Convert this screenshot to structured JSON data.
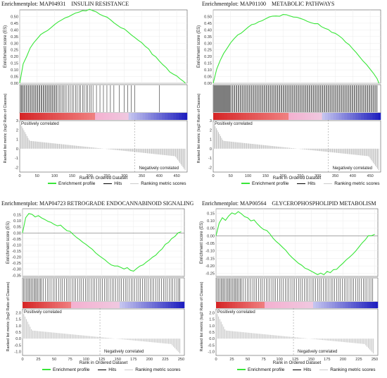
{
  "colors": {
    "profile": "#39e639",
    "hits": "#000000",
    "metric": "#bfbfbf",
    "zero_line": "#888888",
    "heat_high": "#d62728",
    "heat_mid": "#f0c8e0",
    "heat_low": "#1f1fbf"
  },
  "chart_data": [
    {
      "type": "line",
      "title_prefix": "Enrichmentplot:",
      "title_id": "MAP04931",
      "title_name": "INSULIN RESISTANCE",
      "ylabel_top": "Enrichment score (ES)",
      "ylabel_bottom": "Ranked list metric (log2 Ratio of Classes)",
      "xlabel": "Rank in Ordered Dataset",
      "es_yticks": [
        "0.50",
        "0.45",
        "0.40",
        "0.35",
        "0.30",
        "0.25",
        "0.20",
        "0.15",
        "0.10",
        "0.05",
        "0.00"
      ],
      "es_ylim": [
        0.0,
        0.55
      ],
      "es_x": [
        0,
        10,
        20,
        30,
        40,
        50,
        60,
        70,
        80,
        90,
        100,
        110,
        120,
        130,
        140,
        150,
        160,
        170,
        180,
        190,
        200,
        210,
        220,
        230,
        240,
        250,
        260,
        270,
        280,
        290,
        300,
        310,
        320,
        330,
        340,
        350,
        360,
        370,
        380,
        390,
        400,
        410,
        420,
        430,
        440,
        450,
        460,
        470,
        475
      ],
      "es_y": [
        0.0,
        0.14,
        0.2,
        0.26,
        0.3,
        0.33,
        0.36,
        0.38,
        0.4,
        0.42,
        0.44,
        0.46,
        0.48,
        0.49,
        0.5,
        0.51,
        0.52,
        0.53,
        0.54,
        0.54,
        0.55,
        0.54,
        0.53,
        0.52,
        0.51,
        0.5,
        0.48,
        0.46,
        0.44,
        0.42,
        0.4,
        0.38,
        0.36,
        0.34,
        0.32,
        0.3,
        0.27,
        0.25,
        0.22,
        0.2,
        0.17,
        0.14,
        0.12,
        0.09,
        0.07,
        0.05,
        0.03,
        0.01,
        0.0
      ],
      "hits": [
        3,
        5,
        8,
        10,
        13,
        16,
        19,
        22,
        25,
        28,
        31,
        34,
        37,
        40,
        43,
        46,
        49,
        52,
        55,
        58,
        61,
        64,
        67,
        70,
        73,
        76,
        79,
        82,
        85,
        88,
        91,
        94,
        97,
        100,
        103,
        106,
        110,
        114,
        118,
        122,
        126,
        130,
        135,
        140,
        145,
        150,
        155,
        160,
        165,
        170,
        175,
        180,
        185,
        190,
        195,
        200,
        205,
        210,
        220,
        230,
        240,
        250,
        260,
        270,
        285,
        300,
        310,
        320,
        330,
        400
      ],
      "metric_yticks": [
        "3",
        "2",
        "1",
        "0",
        "-1",
        "-2"
      ],
      "metric_ylim": [
        -2.5,
        3.0
      ],
      "metric_shape": {
        "start": 2.8,
        "end": -2.3,
        "n": 475
      },
      "xticks": [
        "0",
        "50",
        "100",
        "150",
        "200",
        "250",
        "300",
        "350",
        "400",
        "450"
      ],
      "xlim": [
        0,
        480
      ],
      "xtick_values": [
        0,
        50,
        100,
        150,
        200,
        250,
        300,
        350,
        400,
        450
      ],
      "zero_cross": 330,
      "pos_label": "Positively correlated",
      "neg_label": "Negatively correlated",
      "heat_stops": [
        0.0,
        0.45,
        0.65,
        1.0
      ]
    },
    {
      "type": "line",
      "title_prefix": "Enrichmentplot:",
      "title_id": "MAP01100",
      "title_name": "METABOLIC PATHWAYS",
      "ylabel_top": "Enrichment score (ES)",
      "ylabel_bottom": "Ranked list metric (log2 Ratio of Classes)",
      "xlabel": "Rank in Ordered Dataset",
      "es_yticks": [
        "0.50",
        "0.45",
        "0.40",
        "0.35",
        "0.30",
        "0.25",
        "0.20",
        "0.15",
        "0.10",
        "0.05",
        "0.00"
      ],
      "es_ylim": [
        0.0,
        0.55
      ],
      "es_x": [
        0,
        10,
        20,
        30,
        40,
        50,
        60,
        70,
        80,
        90,
        100,
        110,
        120,
        130,
        140,
        150,
        160,
        170,
        180,
        190,
        200,
        210,
        220,
        230,
        240,
        250,
        260,
        270,
        280,
        290,
        300,
        310,
        320,
        330,
        340,
        350,
        360,
        370,
        380,
        390,
        400,
        410,
        420,
        430,
        440,
        450,
        460,
        470,
        475
      ],
      "es_y": [
        0.0,
        0.1,
        0.17,
        0.22,
        0.26,
        0.3,
        0.33,
        0.36,
        0.38,
        0.4,
        0.42,
        0.44,
        0.45,
        0.46,
        0.47,
        0.48,
        0.49,
        0.5,
        0.5,
        0.5,
        0.51,
        0.51,
        0.5,
        0.5,
        0.5,
        0.49,
        0.48,
        0.47,
        0.46,
        0.45,
        0.44,
        0.42,
        0.41,
        0.4,
        0.38,
        0.37,
        0.35,
        0.33,
        0.31,
        0.29,
        0.26,
        0.23,
        0.2,
        0.17,
        0.14,
        0.1,
        0.07,
        0.03,
        0.0
      ],
      "hits": [
        2,
        4,
        6,
        8,
        10,
        12,
        14,
        16,
        18,
        20,
        22,
        24,
        26,
        28,
        30,
        32,
        34,
        36,
        38,
        40,
        42,
        44,
        46,
        48,
        50,
        53,
        56,
        59,
        62,
        65,
        68,
        71,
        74,
        77,
        80,
        83,
        86,
        89,
        92,
        95,
        98,
        101,
        104,
        107,
        110,
        113,
        116,
        119,
        122,
        125,
        128,
        131,
        134,
        137,
        140,
        143,
        146,
        149,
        152,
        155,
        158,
        161,
        164,
        167,
        170,
        173,
        176,
        179,
        182,
        185,
        188,
        191,
        194,
        197,
        200,
        203,
        206,
        209,
        212,
        215,
        218,
        221,
        224,
        227,
        230,
        233,
        236,
        239,
        242,
        245,
        248,
        251,
        254,
        257,
        260,
        263,
        266,
        269,
        272,
        275,
        278,
        281,
        284,
        287,
        290,
        293,
        296,
        299,
        302,
        305,
        308,
        311,
        314,
        317,
        320,
        323,
        326,
        329,
        332,
        335,
        338,
        341,
        344,
        347,
        350,
        353,
        356,
        359,
        362,
        365,
        368,
        371,
        374,
        377,
        380,
        383,
        386,
        389,
        392,
        395,
        398,
        401,
        404,
        407,
        410,
        413,
        416,
        419,
        422,
        425,
        428,
        431,
        434,
        437,
        440,
        443,
        446,
        449,
        452,
        455,
        458,
        461,
        464,
        467,
        470
      ],
      "metric_yticks": [
        "3",
        "2",
        "1",
        "0",
        "-1",
        "-2"
      ],
      "metric_ylim": [
        -2.5,
        3.0
      ],
      "metric_shape": {
        "start": 2.8,
        "end": -2.3,
        "n": 475
      },
      "xticks": [
        "0",
        "50",
        "100",
        "150",
        "200",
        "250",
        "300",
        "350",
        "400",
        "450"
      ],
      "xlim": [
        0,
        480
      ],
      "xtick_values": [
        0,
        50,
        100,
        150,
        200,
        250,
        300,
        350,
        400,
        450
      ],
      "zero_cross": 330,
      "pos_label": "Positively correlated",
      "neg_label": "Negatively correlated",
      "heat_stops": [
        0.0,
        0.45,
        0.65,
        1.0
      ]
    },
    {
      "type": "line",
      "title_prefix": "Enrichmentplot:",
      "title_id": "MAP04723",
      "title_name": "RETROGRADE ENDOCANNABINOID SIGNALING",
      "ylabel_top": "Enrichment score (ES)",
      "ylabel_bottom": "Ranked list metric (log2 Ratio of Classes)",
      "xlabel": "Rank in Ordered Dataset",
      "es_yticks": [
        "0.15",
        "0.10",
        "0.05",
        "0.00",
        "-0.05",
        "-0.10",
        "-0.15",
        "-0.20",
        "-0.25",
        "-0.30",
        "-0.35"
      ],
      "es_ylim": [
        -0.36,
        0.2
      ],
      "es_x": [
        0,
        5,
        10,
        15,
        20,
        25,
        30,
        35,
        40,
        45,
        50,
        55,
        60,
        65,
        70,
        75,
        80,
        85,
        90,
        95,
        100,
        105,
        110,
        115,
        120,
        125,
        130,
        135,
        140,
        145,
        150,
        155,
        160,
        165,
        170,
        175,
        180,
        185,
        190,
        195,
        200,
        205,
        210,
        215,
        220,
        225,
        230,
        235,
        240,
        245,
        250
      ],
      "es_y": [
        0.0,
        0.12,
        0.16,
        0.15,
        0.13,
        0.14,
        0.12,
        0.11,
        0.1,
        0.09,
        0.07,
        0.06,
        0.07,
        0.04,
        0.02,
        0.01,
        -0.02,
        -0.04,
        -0.06,
        -0.08,
        -0.1,
        -0.12,
        -0.14,
        -0.16,
        -0.18,
        -0.2,
        -0.22,
        -0.24,
        -0.26,
        -0.27,
        -0.28,
        -0.29,
        -0.3,
        -0.29,
        -0.31,
        -0.32,
        -0.3,
        -0.28,
        -0.26,
        -0.24,
        -0.22,
        -0.2,
        -0.18,
        -0.15,
        -0.13,
        -0.1,
        -0.08,
        -0.05,
        -0.03,
        0.0,
        0.01
      ],
      "hits": [
        2,
        4,
        6,
        8,
        10,
        12,
        14,
        16,
        18,
        20,
        22,
        24,
        26,
        28,
        30,
        33,
        36,
        39,
        42,
        45,
        48,
        51,
        54,
        57,
        60,
        63,
        66,
        69,
        72,
        75,
        78,
        81,
        84,
        87,
        90,
        93,
        96,
        99,
        102,
        105,
        108,
        111,
        114,
        117,
        120,
        123,
        126,
        129,
        132,
        135,
        138,
        141,
        144,
        147,
        150,
        153,
        156,
        159,
        162,
        165,
        168,
        171,
        174,
        177,
        180,
        183,
        186,
        189,
        192,
        195,
        198,
        201,
        204,
        207,
        210,
        213,
        216,
        219,
        222,
        225,
        228,
        231,
        234,
        237,
        240,
        243,
        246,
        248
      ],
      "metric_yticks": [
        "2.0",
        "1.5",
        "1.0",
        "0.5",
        "0.0",
        "-0.5",
        "-1.0"
      ],
      "metric_ylim": [
        -1.3,
        2.3
      ],
      "metric_shape": {
        "start": 2.1,
        "end": -1.2,
        "n": 250
      },
      "xticks": [
        "0",
        "25",
        "50",
        "75",
        "100",
        "125",
        "150",
        "175",
        "200",
        "225",
        "250"
      ],
      "xlim": [
        0,
        255
      ],
      "xtick_values": [
        0,
        25,
        50,
        75,
        100,
        125,
        150,
        175,
        200,
        225,
        250
      ],
      "zero_cross": 122,
      "pos_label": "Positively correlated",
      "neg_label": "Negatively correlated",
      "heat_stops": [
        0.0,
        0.3,
        0.6,
        1.0
      ]
    },
    {
      "type": "line",
      "title_prefix": "Enrichmentplot:",
      "title_id": "MAP00564",
      "title_name": "GLYCEROPHOSPHOLIPID METABOLISM",
      "ylabel_top": "Enrichment score (ES)",
      "ylabel_bottom": "Ranked list metric (log2 Ratio of Classes)",
      "xlabel": "Rank in Ordered Dataset",
      "es_yticks": [
        "0.15",
        "0.10",
        "0.05",
        "0.00",
        "-0.05",
        "-0.10",
        "-0.15",
        "-0.20",
        "-0.25"
      ],
      "es_ylim": [
        -0.27,
        0.18
      ],
      "es_x": [
        0,
        5,
        10,
        15,
        20,
        25,
        30,
        35,
        40,
        45,
        50,
        55,
        60,
        65,
        70,
        75,
        80,
        85,
        90,
        95,
        100,
        105,
        110,
        115,
        120,
        125,
        130,
        135,
        140,
        145,
        150,
        155,
        160,
        165,
        170,
        175,
        180,
        185,
        190,
        195,
        200,
        205,
        210,
        215,
        220,
        225,
        230,
        235,
        240,
        245,
        250
      ],
      "es_y": [
        0.0,
        0.08,
        0.12,
        0.1,
        0.13,
        0.15,
        0.14,
        0.16,
        0.15,
        0.13,
        0.12,
        0.1,
        0.11,
        0.08,
        0.06,
        0.04,
        0.03,
        0.01,
        -0.02,
        -0.04,
        -0.06,
        -0.08,
        -0.1,
        -0.12,
        -0.14,
        -0.16,
        -0.18,
        -0.19,
        -0.21,
        -0.22,
        -0.24,
        -0.25,
        -0.26,
        -0.25,
        -0.26,
        -0.24,
        -0.25,
        -0.23,
        -0.22,
        -0.2,
        -0.18,
        -0.16,
        -0.14,
        -0.12,
        -0.1,
        -0.08,
        -0.05,
        -0.03,
        0.0,
        0.0,
        0.01
      ],
      "hits": [
        2,
        4,
        6,
        8,
        10,
        12,
        14,
        16,
        18,
        20,
        22,
        24,
        26,
        28,
        30,
        32,
        34,
        36,
        38,
        40,
        43,
        46,
        49,
        52,
        55,
        58,
        61,
        64,
        67,
        70,
        73,
        76,
        79,
        82,
        85,
        88,
        91,
        94,
        97,
        100,
        103,
        106,
        109,
        112,
        115,
        118,
        121,
        124,
        127,
        130,
        133,
        136,
        139,
        142,
        145,
        148,
        151,
        154,
        157,
        160,
        163,
        166,
        169,
        172,
        175,
        178,
        181,
        184,
        187,
        190,
        193,
        196,
        199,
        202,
        205,
        208,
        211,
        214,
        217,
        220,
        223,
        226,
        229,
        232,
        235,
        238,
        241,
        244,
        247
      ],
      "metric_yticks": [
        "2.0",
        "1.5",
        "1.0",
        "0.5",
        "0.0",
        "-0.5",
        "-1.0"
      ],
      "metric_ylim": [
        -1.3,
        2.3
      ],
      "metric_shape": {
        "start": 2.1,
        "end": -1.2,
        "n": 250
      },
      "xticks": [
        "0",
        "25",
        "50",
        "75",
        "100",
        "125",
        "150",
        "175",
        "200",
        "225",
        "250"
      ],
      "xlim": [
        0,
        255
      ],
      "xtick_values": [
        0,
        25,
        50,
        75,
        100,
        125,
        150,
        175,
        200,
        225,
        250
      ],
      "zero_cross": 122,
      "pos_label": "Positively correlated",
      "neg_label": "Negatively correlated",
      "heat_stops": [
        0.0,
        0.3,
        0.6,
        1.0
      ]
    }
  ],
  "legend": {
    "profile": "Enrichment profile",
    "hits": "Hits",
    "metric": "Ranking metric scores"
  }
}
